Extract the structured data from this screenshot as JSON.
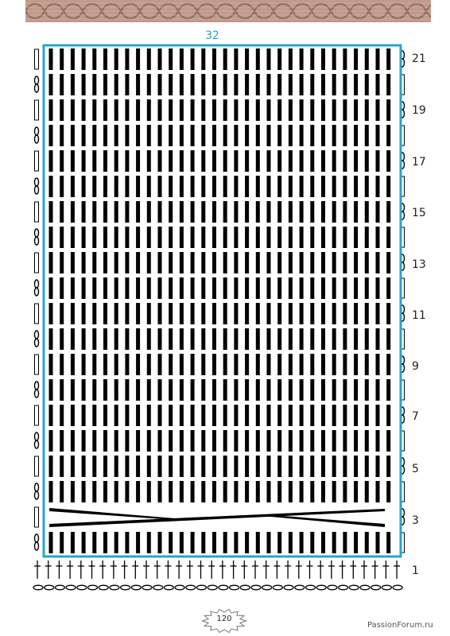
{
  "pattern": {
    "stitch_count_label": "32",
    "row_numbers": [
      "21",
      "19",
      "17",
      "15",
      "13",
      "11",
      "9",
      "7",
      "5",
      "3",
      "1"
    ],
    "stitches_per_row": 32,
    "body_rows": 20
  },
  "page": {
    "page_number": "120",
    "watermark": "PassionForum.ru"
  },
  "colors": {
    "border": "#2aa4c8",
    "banner": "#c09a8a",
    "banner_dark": "#8f6a5d",
    "ink": "#000000",
    "row_label": "#222222"
  }
}
